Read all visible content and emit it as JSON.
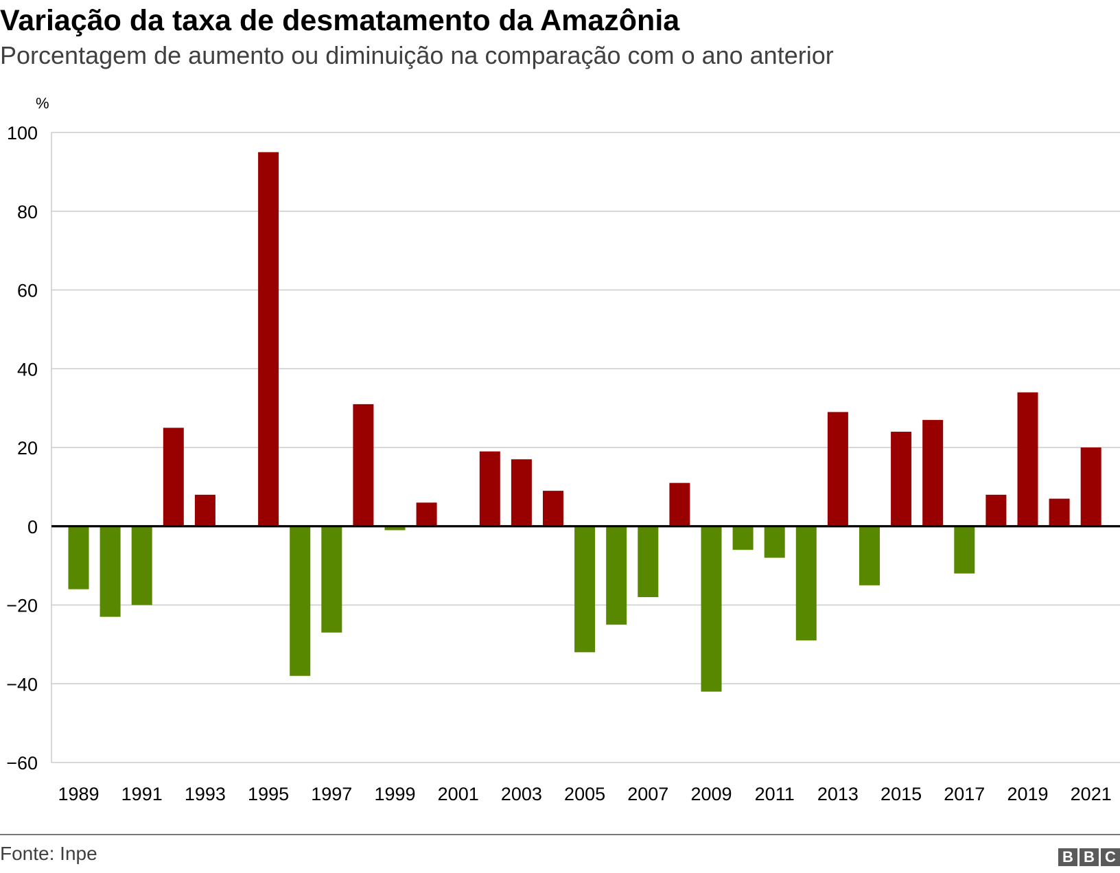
{
  "title": "Variação da taxa de desmatamento da Amazônia",
  "subtitle": "Porcentagem de aumento ou diminuição na comparação com o ano anterior",
  "source": "Fonte: Inpe",
  "logo": "BBC",
  "chart_data": {
    "type": "bar",
    "ylabel": "%",
    "ylim": [
      -60,
      100
    ],
    "yticks": [
      100,
      80,
      60,
      40,
      20,
      0,
      -20,
      -40,
      -60
    ],
    "grid": true,
    "colors": {
      "positive": "#990000",
      "negative": "#588700"
    },
    "categories": [
      "1989",
      "1990",
      "1991",
      "1992",
      "1993",
      "1994",
      "1995",
      "1996",
      "1997",
      "1998",
      "1999",
      "2000",
      "2001",
      "2002",
      "2003",
      "2004",
      "2005",
      "2006",
      "2007",
      "2008",
      "2009",
      "2010",
      "2011",
      "2012",
      "2013",
      "2014",
      "2015",
      "2016",
      "2017",
      "2018",
      "2019",
      "2020",
      "2021"
    ],
    "xtick_labels": [
      "1989",
      "1991",
      "1993",
      "1995",
      "1997",
      "1999",
      "2001",
      "2003",
      "2005",
      "2007",
      "2009",
      "2011",
      "2013",
      "2015",
      "2017",
      "2019",
      "2021"
    ],
    "values": [
      -16,
      -23,
      -20,
      25,
      8,
      null,
      95,
      -38,
      -27,
      31,
      -1,
      6,
      0,
      19,
      17,
      9,
      -32,
      -25,
      -18,
      11,
      -42,
      -6,
      -8,
      -29,
      29,
      -15,
      24,
      27,
      -12,
      8,
      34,
      7,
      20
    ]
  }
}
